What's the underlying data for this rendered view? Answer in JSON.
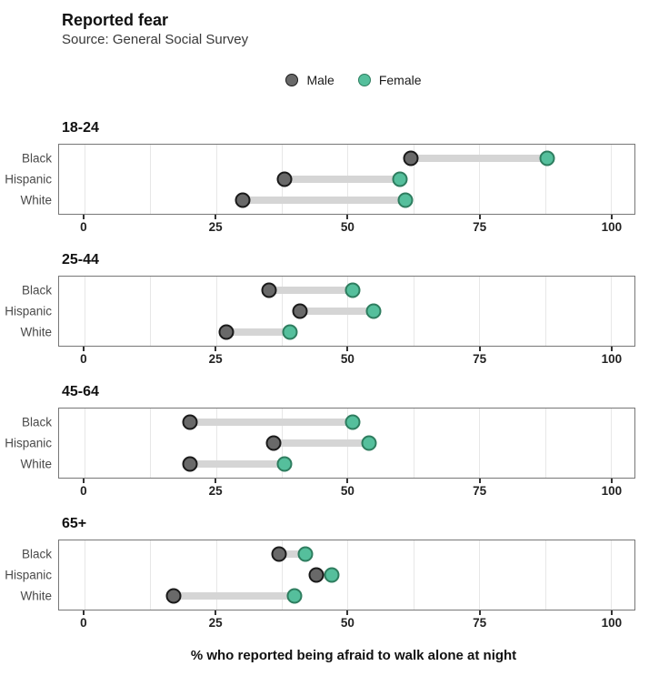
{
  "header": {
    "title": "Reported fear",
    "subtitle": "Source: General Social Survey"
  },
  "legend": {
    "items": [
      {
        "label": "Male",
        "fill": "#696969",
        "stroke": "#1a1a1a"
      },
      {
        "label": "Female",
        "fill": "#55bf9c",
        "stroke": "#2e7d5f"
      }
    ]
  },
  "colors": {
    "male_fill": "#696969",
    "male_stroke": "#1a1a1a",
    "female_fill": "#55bf9c",
    "female_stroke": "#2e7d5f",
    "connector": "#d5d5d5",
    "gridline": "#e7e7e7",
    "panel_border": "#777777",
    "tick": "#333333",
    "category_label": "#4a4a4a"
  },
  "chart_data": {
    "type": "scatter",
    "variant": "dumbbell",
    "title": "Reported fear",
    "subtitle": "Source: General Social Survey",
    "xlabel": "% who reported being afraid to walk alone at night",
    "ylabel": "",
    "legend_position": "top-center",
    "grid": true,
    "xlim": [
      -4.8,
      104.5
    ],
    "x_major_ticks": [
      0,
      25,
      50,
      75,
      100
    ],
    "x_minor_step": 12.5,
    "series_names": [
      "Male",
      "Female"
    ],
    "panels": [
      {
        "group": "18-24",
        "categories": [
          "Black",
          "Hispanic",
          "White"
        ],
        "series": [
          {
            "name": "Male",
            "values": [
              62,
              38,
              30
            ]
          },
          {
            "name": "Female",
            "values": [
              88,
              60,
              61
            ]
          }
        ]
      },
      {
        "group": "25-44",
        "categories": [
          "Black",
          "Hispanic",
          "White"
        ],
        "series": [
          {
            "name": "Male",
            "values": [
              35,
              41,
              27
            ]
          },
          {
            "name": "Female",
            "values": [
              51,
              55,
              39
            ]
          }
        ]
      },
      {
        "group": "45-64",
        "categories": [
          "Black",
          "Hispanic",
          "White"
        ],
        "series": [
          {
            "name": "Male",
            "values": [
              20,
              36,
              20
            ]
          },
          {
            "name": "Female",
            "values": [
              51,
              54,
              38
            ]
          }
        ]
      },
      {
        "group": "65+",
        "categories": [
          "Black",
          "Hispanic",
          "White"
        ],
        "series": [
          {
            "name": "Male",
            "values": [
              37,
              44,
              17
            ]
          },
          {
            "name": "Female",
            "values": [
              42,
              47,
              40
            ]
          }
        ]
      }
    ]
  }
}
